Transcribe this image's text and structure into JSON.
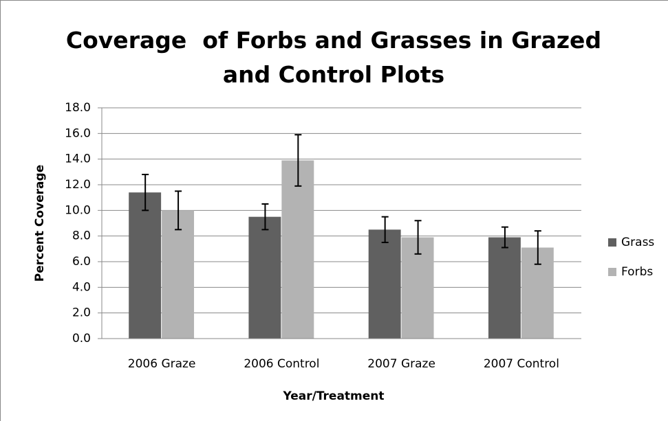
{
  "chart_data": {
    "type": "bar",
    "title": "Coverage  of Forbs and Grasses in Grazed and Control Plots",
    "xlabel": "Year/Treatment",
    "ylabel": "Percent Coverage",
    "categories": [
      "2006 Graze",
      "2006 Control",
      "2007 Graze",
      "2007 Control"
    ],
    "series": [
      {
        "name": "Grass",
        "color": "#606060",
        "values": [
          11.4,
          9.5,
          8.5,
          7.9
        ],
        "errors": [
          1.4,
          1.0,
          1.0,
          0.8
        ]
      },
      {
        "name": "Forbs",
        "color": "#b3b3b3",
        "values": [
          10.0,
          13.9,
          7.9,
          7.1
        ],
        "errors": [
          1.5,
          2.0,
          1.3,
          1.3
        ]
      }
    ],
    "ylim": [
      0,
      18
    ],
    "yticks": [
      {
        "value": 0,
        "label": "0.0"
      },
      {
        "value": 2,
        "label": "2.0"
      },
      {
        "value": 4,
        "label": "4.0"
      },
      {
        "value": 6,
        "label": "6.0"
      },
      {
        "value": 8,
        "label": "8.0"
      },
      {
        "value": 10,
        "label": "10.0"
      },
      {
        "value": 12,
        "label": "12.0"
      },
      {
        "value": 14,
        "label": "14.0"
      },
      {
        "value": 16,
        "label": "16.0"
      },
      {
        "value": 18,
        "label": "18.0"
      }
    ],
    "grid": true,
    "legend": "right"
  }
}
